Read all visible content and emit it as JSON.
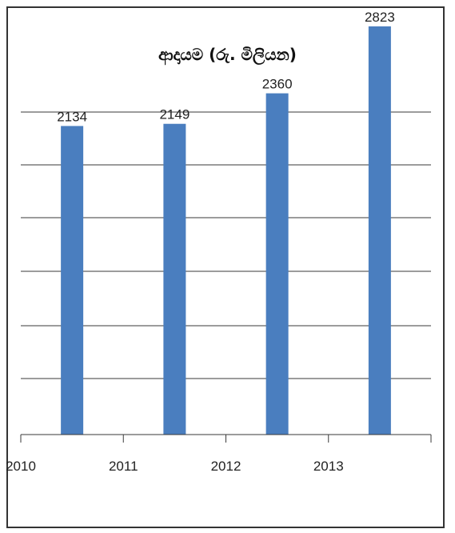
{
  "chart_data": {
    "type": "bar",
    "title": "ආදායම (රු. මිලියන)",
    "categories": [
      "2010",
      "2011",
      "2012",
      "2013"
    ],
    "values": [
      2134,
      2149,
      2360,
      2823
    ],
    "ylim": [
      0,
      2950
    ],
    "grid": true,
    "bar_color": "#4a7ebf",
    "xlabel": "",
    "ylabel": ""
  }
}
